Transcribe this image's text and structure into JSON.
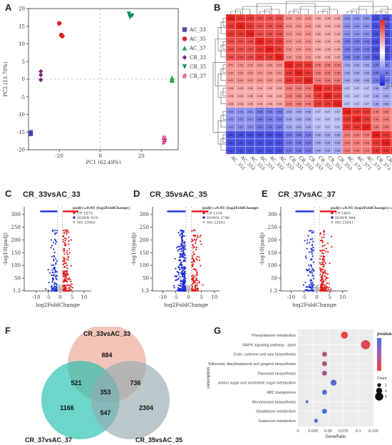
{
  "panels": {
    "a": "A",
    "b": "B",
    "c": "C",
    "d": "D",
    "e": "E",
    "f": "F",
    "g": "G"
  },
  "chart_data": [
    {
      "id": "pca",
      "type": "scatter",
      "xlabel": "PC1 (62.49%)",
      "ylabel": "PC2 (13.70%)",
      "xlim": [
        -35,
        38
      ],
      "ylim": [
        -20,
        20
      ],
      "xticks": [
        -20,
        0,
        20
      ],
      "yticks": [
        -20,
        -15,
        -10,
        -5,
        0,
        5,
        10,
        15,
        20
      ],
      "series": [
        {
          "name": "AC_33",
          "marker": "square",
          "color": "#4a4aa8",
          "points": [
            [
              -34,
              -15.1
            ],
            [
              -34,
              -15.3
            ],
            [
              -34,
              -15.5
            ]
          ]
        },
        {
          "name": "AC_35",
          "marker": "circle",
          "color": "#e8211d",
          "points": [
            [
              -20,
              15.8
            ],
            [
              -19,
              12.5
            ],
            [
              -18.5,
              12.2
            ]
          ]
        },
        {
          "name": "AC_37",
          "marker": "triangle",
          "color": "#27a04a",
          "points": [
            [
              35,
              0.4
            ],
            [
              35.2,
              -0.4
            ],
            [
              34.8,
              -0.2
            ]
          ]
        },
        {
          "name": "CR_33",
          "marker": "diamond",
          "color": "#7b1f7b",
          "points": [
            [
              -29,
              2.2
            ],
            [
              -29,
              1.2
            ],
            [
              -29,
              -0.2
            ]
          ]
        },
        {
          "name": "CR_35",
          "marker": "triangle-down",
          "color": "#0a8a6a",
          "points": [
            [
              14,
              18.5
            ],
            [
              15.5,
              18
            ],
            [
              14.5,
              17.6
            ]
          ]
        },
        {
          "name": "CR_37",
          "marker": "hash",
          "color": "#d02a7a",
          "points": [
            [
              31,
              -16.6
            ],
            [
              31.5,
              -17.3
            ],
            [
              31,
              -17.9
            ]
          ]
        }
      ]
    },
    {
      "id": "heatmap",
      "type": "heatmap",
      "rows": [
        "AC_351",
        "AC_352",
        "AC_353",
        "AC_331",
        "AC_332",
        "AC_333",
        "CR_331",
        "CR_332",
        "CR_333",
        "CR_352",
        "CR_351",
        "CR_353",
        "AC_372",
        "AC_371",
        "AC_373",
        "CR_372",
        "CR_371",
        "CR_373"
      ],
      "cols": [
        "AC_351",
        "AC_352",
        "AC_353",
        "AC_331",
        "AC_332",
        "AC_333",
        "CR_331",
        "CR_332",
        "CR_333",
        "CR_352",
        "CR_351",
        "CR_353",
        "AC_372",
        "AC_371",
        "AC_373",
        "CR_372",
        "CR_371",
        "CR_373"
      ],
      "groups": [
        [
          0,
          1,
          2
        ],
        [
          3,
          4,
          5
        ],
        [
          6,
          7,
          8
        ],
        [
          9,
          10,
          11
        ],
        [
          12,
          13,
          14
        ],
        [
          15,
          16,
          17
        ]
      ],
      "block_values": [
        [
          0.99,
          0.98,
          0.95,
          0.94,
          0.85,
          0.82
        ],
        [
          0.98,
          0.99,
          0.95,
          0.94,
          0.84,
          0.82
        ],
        [
          0.95,
          0.95,
          0.99,
          0.96,
          0.86,
          0.84
        ],
        [
          0.94,
          0.94,
          0.96,
          0.99,
          0.87,
          0.86
        ],
        [
          0.85,
          0.84,
          0.86,
          0.87,
          0.99,
          0.96
        ],
        [
          0.82,
          0.82,
          0.84,
          0.86,
          0.96,
          0.99
        ]
      ],
      "legend_ticks": [
        1,
        0.9,
        0.8
      ],
      "colorscale": [
        "#1b23d8",
        "#ffffff",
        "#e8231f"
      ]
    },
    {
      "id": "volcano_c",
      "type": "scatter",
      "title": "CR_33vsAC_33",
      "legend_title": "padj<=0.05 |log2FoldChange|>=1.0",
      "legend": [
        "UP 1575",
        "DOWN 919",
        "NO 23983"
      ],
      "xlabel": "log2FoldChange",
      "ylabel": "-log10(padj)",
      "xlim": [
        -15,
        13
      ],
      "ylim": [
        0,
        330
      ],
      "xticks": [
        -10,
        -5,
        0,
        5,
        10
      ],
      "yticks": [
        1.3,
        50,
        100,
        150,
        200,
        250,
        300
      ],
      "up": 1575,
      "down": 919,
      "no": 23983
    },
    {
      "id": "volcano_d",
      "type": "scatter",
      "title": "CR_35vsAC_35",
      "legend_title": "padj<=0.05 |log2FoldChange|>=1.0",
      "legend": [
        "UP 1194",
        "DOWN 2746",
        "NO 22941"
      ],
      "xlabel": "log2FoldChange",
      "ylabel": "-log10(padj)",
      "xlim": [
        -14,
        12
      ],
      "ylim": [
        0,
        330
      ],
      "xticks": [
        -10,
        -5,
        0,
        5,
        10
      ],
      "yticks": [
        1.3,
        50,
        100,
        150,
        200,
        250,
        300
      ],
      "up": 1194,
      "down": 2746,
      "no": 22941
    },
    {
      "id": "volcano_e",
      "type": "scatter",
      "title": "CR_37vsAC_37",
      "legend_title": "padj<=0.05 |log2FoldChange|>=1.0",
      "legend": [
        "UP 1603",
        "DOWN 984",
        "NO 22841"
      ],
      "xlabel": "log2FoldChange",
      "ylabel": "-log10(padj)",
      "xlim": [
        -14,
        12
      ],
      "ylim": [
        0,
        330
      ],
      "xticks": [
        -10,
        -5,
        0,
        5,
        10
      ],
      "yticks": [
        1.3,
        50,
        100,
        150,
        200,
        250,
        300
      ],
      "up": 1603,
      "down": 984,
      "no": 22841
    },
    {
      "id": "venn",
      "type": "venn",
      "sets": [
        {
          "name": "CR_33vsAC_33",
          "color": "#eaa894"
        },
        {
          "name": "CR_37vsAC_37",
          "color": "#1fbfae"
        },
        {
          "name": "CR_35vsAC_35",
          "color": "#95aab0"
        }
      ],
      "regions": {
        "only_33": 884,
        "only_37": 1166,
        "only_35": 2304,
        "33_37": 521,
        "33_35": 736,
        "37_35": 547,
        "all": 353
      }
    },
    {
      "id": "enrichment",
      "type": "scatter",
      "xlabel": "GeneRatio",
      "ylabel": "Description",
      "xlim": [
        0,
        0.125
      ],
      "xticks": [
        0,
        0.025,
        0.05,
        0.075,
        0.1,
        0.125
      ],
      "legend_title": "pvalue",
      "legend_count_title": "Count",
      "count_ticks": [
        2,
        4,
        6
      ],
      "categories": [
        "Phenylalanine metabolism",
        "MAPK signaling pathway - plant",
        "Cutin, suberine and wax biosynthesis",
        "Stilbenoid, diarylheptanoid and gingerol biosynthesis",
        "Flavonoid biosynthesis",
        "Amino sugar and nucleotide sugar metabolism",
        "ABC transporters",
        "Monobactam biosynthesis",
        "Glutathione metabolism",
        "Galactose metabolism"
      ],
      "values": [
        0.077,
        0.112,
        0.044,
        0.044,
        0.044,
        0.059,
        0.044,
        0.015,
        0.044,
        0.03
      ],
      "counts": [
        5,
        7,
        3,
        3,
        3,
        4,
        3,
        1,
        3,
        2
      ],
      "pvalues": [
        0.0001,
        0.0002,
        0.001,
        0.002,
        0.003,
        0.04,
        0.06,
        0.08,
        0.1,
        0.11
      ]
    }
  ]
}
